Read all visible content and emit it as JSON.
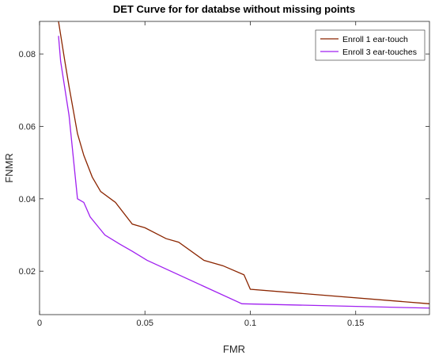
{
  "chart_data": {
    "type": "line",
    "title": "DET Curve for for databse without missing points",
    "xlabel": "FMR",
    "ylabel": "FNMR",
    "xlim": [
      0,
      0.185
    ],
    "ylim": [
      0.008,
      0.089
    ],
    "xticks": [
      0,
      0.05,
      0.1,
      0.15
    ],
    "xtick_labels": [
      "0",
      "0.05",
      "0.1",
      "0.15"
    ],
    "yticks": [
      0.02,
      0.04,
      0.06,
      0.08
    ],
    "ytick_labels": [
      "0.02",
      "0.04",
      "0.06",
      "0.08"
    ],
    "grid": false,
    "legend_position": "top-right",
    "series": [
      {
        "name": "Enroll 1 ear-touch",
        "color": "#8b2500",
        "x": [
          0.009,
          0.012,
          0.014,
          0.018,
          0.021,
          0.025,
          0.029,
          0.036,
          0.044,
          0.05,
          0.06,
          0.066,
          0.078,
          0.087,
          0.097,
          0.1,
          0.185
        ],
        "y": [
          0.089,
          0.078,
          0.071,
          0.058,
          0.052,
          0.046,
          0.042,
          0.039,
          0.033,
          0.032,
          0.029,
          0.028,
          0.023,
          0.0215,
          0.019,
          0.015,
          0.011
        ]
      },
      {
        "name": "Enroll 3 ear-touches",
        "color": "#a020f0",
        "x": [
          0.009,
          0.01,
          0.014,
          0.018,
          0.021,
          0.024,
          0.031,
          0.038,
          0.044,
          0.051,
          0.096,
          0.185
        ],
        "y": [
          0.085,
          0.078,
          0.063,
          0.04,
          0.039,
          0.035,
          0.03,
          0.0275,
          0.0255,
          0.023,
          0.011,
          0.0098
        ]
      }
    ]
  }
}
